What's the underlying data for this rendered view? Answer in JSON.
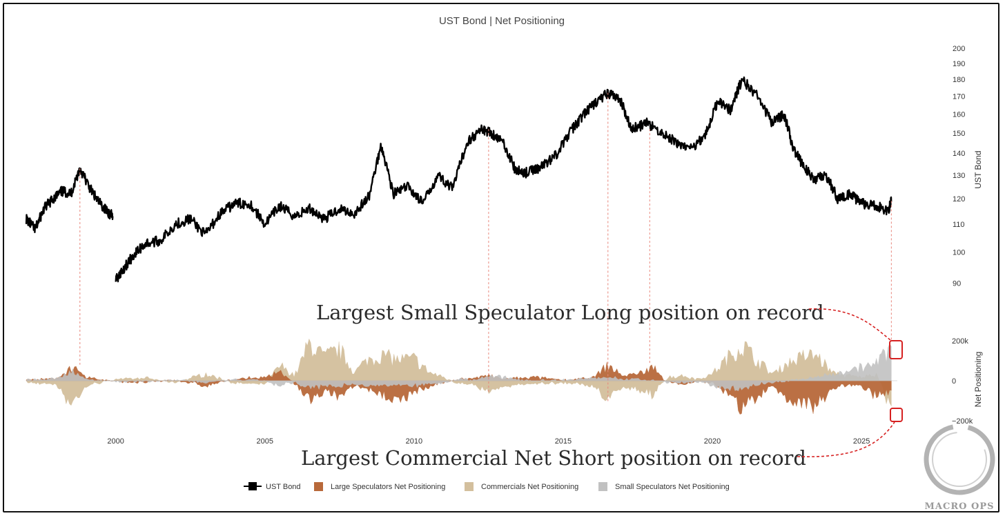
{
  "chart_data": [
    {
      "type": "line",
      "title": "UST Bond | Net Positioning",
      "ylabel": "UST Bond",
      "yscale": "log",
      "ylim": [
        88,
        202
      ],
      "yticks": [
        90,
        100,
        110,
        120,
        130,
        140,
        150,
        160,
        170,
        180,
        190,
        200
      ],
      "xlim": [
        1997.0,
        2026.2
      ],
      "xticks": [
        2000,
        2005,
        2010,
        2015,
        2020,
        2025
      ],
      "series": [
        {
          "name": "UST Bond",
          "segments": [
            {
              "x": [
                1997.0,
                1997.3,
                1997.6,
                1997.9,
                1998.2,
                1998.5,
                1998.8,
                1999.1,
                1999.4,
                1999.7,
                1999.9
              ],
              "y": [
                112,
                108,
                116,
                120,
                123,
                122,
                133,
                125,
                119,
                115,
                113
              ]
            },
            {
              "x": [
                2000.0,
                2000.3,
                2000.6,
                2001.0,
                2001.5,
                2002.0,
                2002.5,
                2003.0,
                2003.5,
                2004.0,
                2004.5,
                2005.0,
                2005.5,
                2006.0,
                2006.5,
                2007.0,
                2007.5,
                2008.0,
                2008.5,
                2008.9,
                2009.3,
                2009.8,
                2010.3,
                2010.8,
                2011.3,
                2011.8,
                2012.3,
                2012.6,
                2013.0,
                2013.4,
                2013.8,
                2014.3,
                2014.8,
                2015.3,
                2015.7,
                2016.0,
                2016.5,
                2016.9,
                2017.3,
                2017.8,
                2018.3,
                2018.8,
                2019.3,
                2019.8,
                2020.2,
                2020.6,
                2021.0,
                2021.5,
                2022.0,
                2022.4,
                2022.7,
                2023.0,
                2023.4,
                2023.8,
                2024.2,
                2024.6,
                2025.0,
                2025.5,
                2025.9,
                2026.0
              ],
              "y": [
                91,
                95,
                99,
                103,
                104,
                110,
                112,
                106,
                114,
                118,
                118,
                110,
                117,
                113,
                116,
                112,
                116,
                114,
                121,
                144,
                122,
                125,
                118,
                130,
                124,
                146,
                152,
                150,
                145,
                132,
                131,
                134,
                140,
                152,
                160,
                165,
                172,
                168,
                152,
                155,
                150,
                145,
                142,
                150,
                168,
                162,
                180,
                170,
                155,
                160,
                143,
                135,
                128,
                130,
                120,
                122,
                118,
                117,
                115,
                119
              ]
            }
          ]
        }
      ]
    },
    {
      "type": "area",
      "ylabel": "Net Positioning",
      "ylim": [
        -200000,
        200000
      ],
      "yticks": [
        {
          "value": 200000,
          "label": "200k"
        },
        {
          "value": 0,
          "label": "0"
        },
        {
          "value": -200000,
          "label": "−200k"
        }
      ],
      "x": [
        1997.0,
        1998.0,
        1998.5,
        1999.0,
        2000.0,
        2001.0,
        2002.0,
        2003.0,
        2004.0,
        2005.0,
        2005.5,
        2006.0,
        2006.5,
        2007.0,
        2007.5,
        2008.0,
        2008.5,
        2009.0,
        2009.5,
        2010.0,
        2010.5,
        2011.0,
        2011.5,
        2012.0,
        2012.5,
        2013.0,
        2014.0,
        2015.0,
        2016.0,
        2016.5,
        2017.0,
        2017.5,
        2018.0,
        2018.5,
        2019.0,
        2019.5,
        2020.0,
        2020.5,
        2021.0,
        2021.5,
        2022.0,
        2022.5,
        2023.0,
        2023.5,
        2024.0,
        2024.5,
        2025.0,
        2025.5,
        2026.0
      ],
      "series": [
        {
          "name": "Large Speculators Net Positioning",
          "color": "#b8693a",
          "values": [
            5000,
            10000,
            80000,
            20000,
            -5000,
            -10000,
            5000,
            -30000,
            10000,
            20000,
            60000,
            -20000,
            -110000,
            -60000,
            -100000,
            -30000,
            -60000,
            -90000,
            -110000,
            -70000,
            -40000,
            -10000,
            10000,
            15000,
            30000,
            10000,
            20000,
            5000,
            15000,
            90000,
            30000,
            40000,
            80000,
            -10000,
            -20000,
            -5000,
            -10000,
            -80000,
            -160000,
            -100000,
            -30000,
            -100000,
            -130000,
            -150000,
            -50000,
            -20000,
            -30000,
            -90000,
            -60000
          ]
        },
        {
          "name": "Commercials Net Positioning",
          "color": "#d3bf9d",
          "values": [
            -10000,
            -20000,
            -140000,
            -30000,
            10000,
            15000,
            -10000,
            40000,
            -15000,
            -20000,
            90000,
            30000,
            220000,
            140000,
            180000,
            50000,
            130000,
            150000,
            120000,
            130000,
            50000,
            20000,
            -20000,
            -20000,
            -60000,
            -30000,
            -20000,
            -10000,
            -30000,
            -110000,
            -40000,
            -50000,
            -80000,
            20000,
            30000,
            10000,
            40000,
            130000,
            210000,
            120000,
            40000,
            100000,
            140000,
            150000,
            50000,
            30000,
            20000,
            40000,
            -170000
          ]
        },
        {
          "name": "Small Speculators Net Positioning",
          "color": "#c1c1c1",
          "values": [
            5000,
            10000,
            60000,
            10000,
            -5000,
            -5000,
            5000,
            -10000,
            5000,
            0,
            -30000,
            -10000,
            -40000,
            -30000,
            -30000,
            -20000,
            -30000,
            -30000,
            -30000,
            -30000,
            -20000,
            -10000,
            10000,
            5000,
            25000,
            20000,
            0,
            5000,
            15000,
            20000,
            10000,
            10000,
            0,
            -10000,
            -10000,
            -5000,
            -30000,
            -50000,
            -50000,
            -20000,
            -10000,
            0,
            10000,
            20000,
            40000,
            60000,
            80000,
            100000,
            200000
          ]
        }
      ]
    }
  ],
  "annotations": {
    "top": "Largest Small Speculator Long position on record",
    "bottom": "Largest Commercial Net Short position on record"
  },
  "legend": {
    "position": "bottom-center",
    "items": [
      "UST Bond",
      "Large Speculators Net Positioning",
      "Commercials Net Positioning",
      "Small Speculators Net Positioning"
    ]
  },
  "logo": {
    "text": "MACRO OPS"
  }
}
